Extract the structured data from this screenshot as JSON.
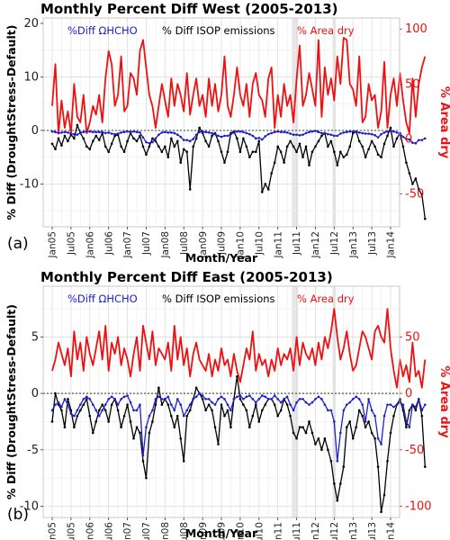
{
  "colors": {
    "hcho": "#1f1fc8",
    "isop": "#000000",
    "area": "#ee1111",
    "shade": "#e6e6e6",
    "grid_major": "#dcdcdc",
    "grid_minor": "#efefef"
  },
  "x_ticks": [
    "Jan05",
    "Jul05",
    "Jan06",
    "Jul06",
    "Jan07",
    "Jul07",
    "Jan08",
    "Jul08",
    "Jan09",
    "Jul09",
    "Jan10",
    "Jul10",
    "Jan11",
    "Jul11",
    "Jan12",
    "Jul12",
    "Jan13",
    "Jul13",
    "Jan14"
  ],
  "x_label": "Month/Year",
  "chart_data": [
    {
      "type": "line",
      "panel_label": "(a)",
      "title": "Monthly Percent Diff West (2005-2013)",
      "ylabel": "% Diff (DroughtStress-Default)",
      "y2label": "% Area dry",
      "ylim": [
        -18,
        21
      ],
      "y2lim": [
        -80,
        110
      ],
      "y_ticks": [
        -10,
        0,
        10,
        20
      ],
      "y2_ticks": [
        -50,
        0,
        50,
        100
      ],
      "start": "2005-01",
      "shaded_months": [
        "2011-06",
        "2011-07",
        "2012-07"
      ],
      "legend": {
        "hcho": "%Diff ΩHCHO",
        "isop": "% Diff ISOP emissions",
        "area": "% Area dry"
      },
      "series": [
        {
          "name": "%Diff ΩHCHO",
          "color_key": "hcho",
          "axis": "left",
          "values": [
            -0.2,
            -0.3,
            -0.5,
            -0.4,
            -0.3,
            -0.4,
            -0.6,
            -0.7,
            -0.8,
            -0.4,
            -0.3,
            -0.2,
            -0.2,
            -0.3,
            -0.3,
            -0.3,
            -0.3,
            -0.5,
            -0.4,
            -0.6,
            -0.7,
            -0.6,
            -0.4,
            -0.3,
            -0.2,
            -0.3,
            -0.2,
            -0.3,
            -0.4,
            -1.3,
            -2.2,
            -2.4,
            -2.2,
            -1.5,
            -0.8,
            -0.4,
            -0.3,
            -0.4,
            -0.4,
            -0.5,
            -0.8,
            -1.2,
            -1.8,
            -1.8,
            -2.0,
            -1.6,
            -0.8,
            -0.3,
            -0.2,
            -0.3,
            -0.4,
            -0.5,
            -0.7,
            -1.0,
            -1.2,
            -1.0,
            -1.0,
            -0.7,
            -0.4,
            -0.2,
            -0.2,
            -0.3,
            -0.5,
            -0.7,
            -1.0,
            -1.5,
            -1.4,
            -1.7,
            -1.1,
            -0.7,
            -0.5,
            -0.3,
            -0.2,
            -0.3,
            -0.3,
            -0.4,
            -0.6,
            -0.8,
            -0.8,
            -0.9,
            -0.8,
            -0.5,
            -0.3,
            -0.2,
            -0.1,
            -0.3,
            -0.5,
            -0.5,
            -0.7,
            -0.8,
            -1.0,
            -1.0,
            -0.6,
            -0.4,
            -0.3,
            -0.2,
            -0.2,
            -0.3,
            -0.4,
            -0.5,
            -0.6,
            -0.6,
            -0.7,
            -0.9,
            -1.3,
            -0.7,
            -0.4,
            -0.2,
            -0.1,
            -0.2,
            -0.4,
            -0.6,
            -1.2,
            -1.6,
            -1.7,
            -2.3,
            -2.4,
            -1.8,
            -1.8,
            -1.5
          ]
        },
        {
          "name": "% Diff ISOP emissions",
          "color_key": "isop",
          "axis": "left",
          "values": [
            -2.5,
            -3.5,
            -1.5,
            -2.8,
            -1.0,
            -2.0,
            -0.8,
            -1.5,
            1.0,
            -0.5,
            -1.5,
            -3.0,
            -3.5,
            -2.0,
            -1.0,
            -1.8,
            -0.5,
            -3.0,
            -4.0,
            -2.5,
            -1.0,
            -0.8,
            -3.0,
            -4.0,
            -2.0,
            -0.5,
            -1.5,
            -2.0,
            -1.0,
            -3.0,
            -4.5,
            -3.0,
            -1.5,
            -2.0,
            -3.0,
            -4.0,
            -3.0,
            -5.0,
            -1.5,
            -3.0,
            -2.0,
            -6.0,
            -3.5,
            -4.0,
            -11.0,
            -3.0,
            -1.5,
            0.5,
            -0.5,
            -2.0,
            -3.0,
            -1.0,
            -0.5,
            -2.0,
            -4.0,
            -6.0,
            -4.0,
            -0.5,
            -0.2,
            -1.5,
            -4.0,
            -1.5,
            -3.0,
            -5.0,
            -4.0,
            -4.0,
            -2.0,
            -11.5,
            -10.0,
            -11.0,
            -8.0,
            -6.0,
            -3.0,
            -4.0,
            -6.0,
            -3.0,
            -2.0,
            -3.0,
            -4.0,
            -2.5,
            -5.0,
            -3.0,
            -6.5,
            -4.0,
            -3.0,
            -2.0,
            -1.0,
            -0.5,
            -3.0,
            -2.0,
            -4.0,
            -6.5,
            -4.0,
            -5.0,
            -4.5,
            -3.0,
            -0.5,
            -0.2,
            -2.0,
            -3.0,
            -5.0,
            -3.5,
            -2.0,
            -3.0,
            -4.5,
            -5.0,
            -2.5,
            -1.0,
            0.5,
            -3.0,
            -1.5,
            -0.5,
            -3.0,
            -6.0,
            -8.0,
            -10.0,
            -9.0,
            -11.0,
            -12.0,
            -16.5
          ]
        },
        {
          "name": "% Area dry",
          "color_key": "area",
          "axis": "right",
          "values": [
            30,
            68,
            5,
            35,
            10,
            25,
            5,
            50,
            20,
            15,
            40,
            5,
            15,
            30,
            22,
            40,
            15,
            55,
            80,
            68,
            30,
            40,
            75,
            25,
            30,
            60,
            55,
            40,
            80,
            90,
            65,
            40,
            30,
            10,
            30,
            50,
            35,
            20,
            55,
            30,
            50,
            40,
            25,
            60,
            22,
            40,
            55,
            30,
            40,
            20,
            55,
            30,
            50,
            25,
            40,
            75,
            30,
            20,
            40,
            65,
            40,
            30,
            50,
            20,
            50,
            60,
            40,
            35,
            20,
            55,
            65,
            10,
            40,
            20,
            50,
            30,
            40,
            15,
            55,
            85,
            30,
            40,
            60,
            45,
            30,
            90,
            20,
            65,
            40,
            55,
            35,
            75,
            50,
            92,
            90,
            50,
            45,
            30,
            75,
            15,
            20,
            50,
            35,
            40,
            10,
            25,
            70,
            10,
            40,
            55,
            30,
            60,
            35,
            15,
            5,
            55,
            20,
            50,
            65,
            75
          ]
        }
      ]
    },
    {
      "type": "line",
      "panel_label": "(b)",
      "title": "Monthly Percent Diff East (2005-2013)",
      "ylabel": "% Diff (DroughtStress-Default)",
      "y2label": "% Area dry",
      "ylim": [
        -11,
        9.5
      ],
      "y2lim": [
        -110,
        95
      ],
      "y_ticks": [
        -10,
        -5,
        0,
        5
      ],
      "y2_ticks": [
        -100,
        -50,
        0,
        50
      ],
      "start": "2005-01",
      "shaded_months": [
        "2011-06",
        "2011-07",
        "2012-07"
      ],
      "legend": {
        "hcho": "%Diff ΩHCHO",
        "isop": "% Diff ISOP emissions",
        "area": "% Area dry"
      },
      "series": [
        {
          "name": "%Diff ΩHCHO",
          "color_key": "hcho",
          "axis": "left",
          "values": [
            -1.5,
            -1.0,
            -0.8,
            -1.2,
            -0.5,
            -1.0,
            -1.8,
            -2.0,
            -1.5,
            -1.0,
            -0.5,
            -0.3,
            -0.5,
            -1.0,
            -1.5,
            -2.0,
            -1.5,
            -1.0,
            -0.5,
            -0.3,
            -0.5,
            -1.0,
            -0.5,
            -0.3,
            -0.2,
            -0.8,
            -1.5,
            -1.5,
            -1.0,
            -5.5,
            -3.0,
            -2.0,
            -1.5,
            -0.5,
            -0.3,
            -0.5,
            -0.5,
            -0.3,
            -1.0,
            -1.5,
            -0.5,
            -1.0,
            -2.0,
            -1.5,
            -1.0,
            -0.5,
            -0.3,
            0.0,
            -0.2,
            -0.5,
            -0.5,
            -0.8,
            -1.0,
            -0.5,
            -0.3,
            -0.5,
            -1.0,
            -1.5,
            -0.5,
            -0.3,
            -0.2,
            -0.5,
            -0.3,
            -0.2,
            -0.5,
            -0.8,
            -0.5,
            -0.2,
            -0.3,
            -0.5,
            -0.5,
            -0.2,
            -0.5,
            -0.8,
            -0.5,
            -0.3,
            -1.0,
            -1.5,
            -0.8,
            -0.5,
            -0.5,
            -0.8,
            -1.0,
            -0.8,
            -0.5,
            -0.3,
            -0.5,
            -1.0,
            -1.5,
            -1.5,
            -2.5,
            -6.0,
            -3.5,
            -1.5,
            -1.0,
            -0.8,
            -0.5,
            -0.3,
            -0.5,
            -1.0,
            -2.5,
            -0.5,
            -1.5,
            -2.0,
            -4.0,
            -4.5,
            -2.0,
            -1.0,
            -1.0,
            -1.2,
            -1.0,
            -0.8,
            -1.0,
            -2.5,
            -3.0,
            -1.0,
            -1.2,
            -0.5,
            -1.5,
            -1.0
          ]
        },
        {
          "name": "% Diff ISOP emissions",
          "color_key": "isop",
          "axis": "left",
          "values": [
            -2.5,
            0.0,
            -1.0,
            -1.5,
            -3.0,
            -0.5,
            -1.5,
            -3.0,
            -2.0,
            -1.5,
            -1.0,
            -0.5,
            -2.0,
            -3.5,
            -2.5,
            -1.5,
            -1.0,
            -1.5,
            -2.5,
            -1.0,
            -0.5,
            -1.5,
            -3.0,
            -2.0,
            -1.0,
            -2.5,
            -4.0,
            -3.0,
            -3.5,
            -6.0,
            -7.5,
            -3.5,
            -2.5,
            -1.0,
            0.5,
            -1.0,
            -0.5,
            -1.0,
            -2.0,
            -3.0,
            -2.0,
            -4.0,
            -6.0,
            -2.0,
            -1.5,
            -0.5,
            0.5,
            0.0,
            -0.5,
            -1.5,
            -1.0,
            -1.5,
            -3.0,
            -4.5,
            -1.0,
            -2.0,
            -1.5,
            -3.0,
            -0.5,
            1.5,
            -0.5,
            -1.0,
            -1.5,
            -3.0,
            -2.0,
            -1.0,
            -2.5,
            -1.5,
            -1.0,
            -0.5,
            -0.5,
            -1.0,
            -2.0,
            -1.5,
            -0.5,
            -1.0,
            -2.0,
            -3.5,
            -4.0,
            -3.0,
            -3.0,
            -3.5,
            -2.5,
            -3.5,
            -4.5,
            -4.0,
            -5.0,
            -4.0,
            -5.0,
            -6.0,
            -8.0,
            -9.5,
            -8.0,
            -6.5,
            -3.0,
            -2.5,
            -4.0,
            -3.0,
            -1.5,
            -2.0,
            -3.0,
            -2.5,
            -3.5,
            -4.0,
            -6.5,
            -10.5,
            -9.0,
            -6.0,
            -3.5,
            -2.0,
            -1.0,
            -0.5,
            -1.5,
            -3.0,
            -1.5,
            -1.0,
            -1.5,
            -0.5,
            -2.0,
            -6.5
          ]
        },
        {
          "name": "% Area dry",
          "color_key": "area",
          "axis": "right",
          "values": [
            20,
            30,
            45,
            35,
            25,
            40,
            15,
            55,
            30,
            45,
            20,
            50,
            35,
            25,
            40,
            55,
            30,
            60,
            20,
            45,
            35,
            50,
            25,
            40,
            30,
            15,
            35,
            50,
            20,
            60,
            45,
            30,
            55,
            25,
            40,
            35,
            30,
            45,
            20,
            60,
            30,
            50,
            25,
            40,
            15,
            35,
            45,
            30,
            25,
            20,
            35,
            15,
            30,
            20,
            40,
            25,
            30,
            15,
            35,
            20,
            10,
            25,
            40,
            30,
            55,
            20,
            35,
            25,
            30,
            15,
            30,
            20,
            40,
            25,
            35,
            30,
            40,
            20,
            50,
            25,
            45,
            35,
            30,
            40,
            25,
            45,
            30,
            50,
            40,
            55,
            75,
            50,
            30,
            40,
            55,
            35,
            20,
            25,
            40,
            55,
            50,
            40,
            30,
            55,
            60,
            50,
            45,
            75,
            40,
            20,
            5,
            30,
            15,
            25,
            10,
            45,
            15,
            20,
            5,
            30
          ]
        }
      ]
    }
  ]
}
